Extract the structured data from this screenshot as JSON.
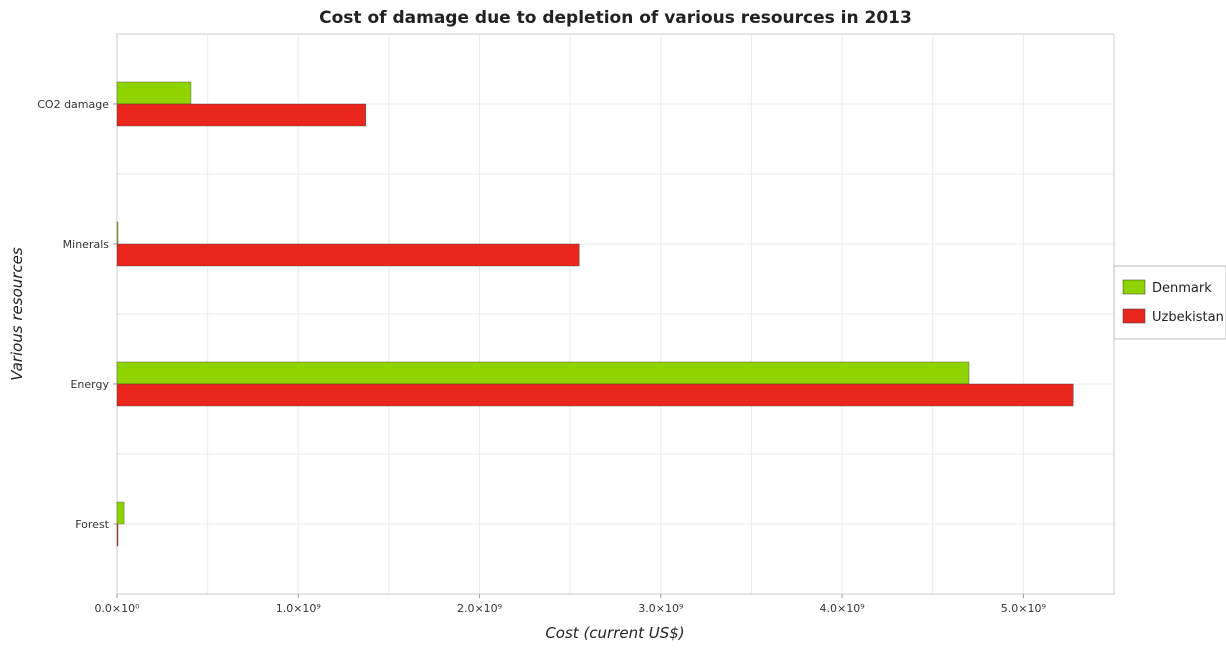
{
  "chart_data": {
    "type": "bar",
    "orientation": "horizontal",
    "title": "Cost of damage due to depletion of various resources in 2013",
    "xlabel": "Cost (current US$)",
    "ylabel": "Various resources",
    "categories": [
      "CO2 damage",
      "Minerals",
      "Energy",
      "Forest"
    ],
    "series": [
      {
        "name": "Denmark",
        "color": "#8fd400",
        "values": [
          408000000,
          2000000,
          4700000000,
          39000000
        ]
      },
      {
        "name": "Uzbekistan",
        "color": "#e8261c",
        "values": [
          1372000000,
          2550000000,
          5275000000,
          1000000
        ]
      }
    ],
    "xlim": [
      0,
      5500000000
    ],
    "xticks": [
      0,
      1000000000,
      2000000000,
      3000000000,
      4000000000,
      5000000000
    ],
    "xtick_labels": [
      "0.0×10⁰",
      "1.0×10⁹",
      "2.0×10⁹",
      "3.0×10⁹",
      "4.0×10⁹",
      "5.0×10⁹"
    ],
    "grid": true,
    "legend_position": "right"
  }
}
